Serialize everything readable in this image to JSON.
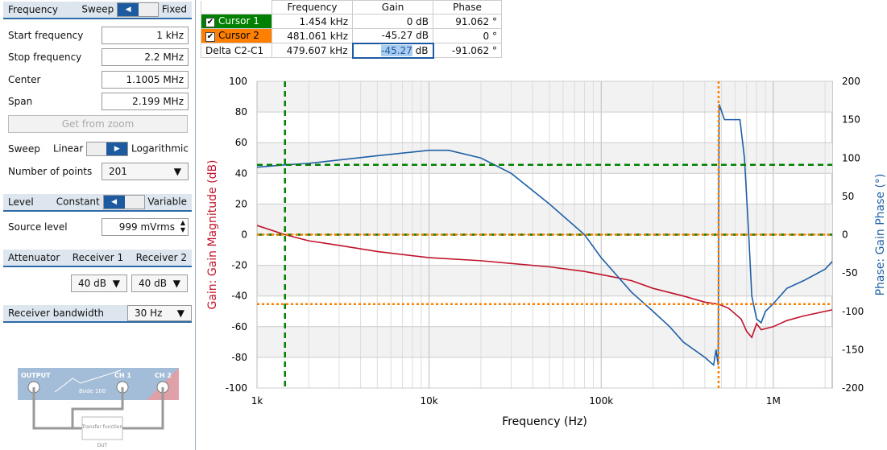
{
  "frequency": {
    "title": "Frequency",
    "sweep_label": "Sweep",
    "fixed_label": "Fixed",
    "start_label": "Start frequency",
    "start": "1 kHz",
    "stop_label": "Stop frequency",
    "stop": "2.2 MHz",
    "center_label": "Center",
    "center": "1.1005 MHz",
    "span_label": "Span",
    "span": "2.199 MHz",
    "get_from_zoom": "Get from zoom",
    "sweep_type_label": "Sweep",
    "linear": "Linear",
    "log": "Logarithmic",
    "points_label": "Number of points",
    "points": "201"
  },
  "level": {
    "title": "Level",
    "constant": "Constant",
    "variable": "Variable",
    "source_label": "Source level",
    "source": "999 mVrms"
  },
  "attenuator": {
    "title": "Attenuator",
    "r1": "Receiver 1",
    "r2": "Receiver 2",
    "r1_val": "40 dB",
    "r2_val": "40 dB"
  },
  "bandwidth": {
    "title": "Receiver bandwidth",
    "value": "30 Hz"
  },
  "diagram": {
    "output": "OUTPUT",
    "ch1": "CH 1",
    "ch2": "CH 2",
    "device": "Bode 100",
    "transfer": "Transfer function",
    "dut": "DUT"
  },
  "cursors": {
    "headers": [
      "Frequency",
      "Gain",
      "Phase"
    ],
    "rows": [
      {
        "name": "Cursor 1",
        "freq": "1.454 kHz",
        "gain": "0 dB",
        "phase": "91.062 °",
        "color": "#008000"
      },
      {
        "name": "Cursor 2",
        "freq": "481.061 kHz",
        "gain": "-45.27 dB",
        "phase": "0 °",
        "color": "#ff8000"
      },
      {
        "name": "Delta C2-C1",
        "freq": "479.607 kHz",
        "gain": "-45.27",
        "gain_unit": "dB",
        "phase": "-91.062 °"
      }
    ]
  },
  "chart_data": {
    "type": "line",
    "xlabel": "Frequency (Hz)",
    "ylabel": "Gain: Gain Magnitude (dB)",
    "y2label": "Phase: Gain Phase (°)",
    "xscale": "log",
    "xlim": [
      1000,
      2200000
    ],
    "ylim": [
      -100,
      100
    ],
    "y2lim": [
      -200,
      200
    ],
    "xticks": [
      {
        "v": 1000,
        "l": "1k"
      },
      {
        "v": 10000,
        "l": "10k"
      },
      {
        "v": 100000,
        "l": "100k"
      },
      {
        "v": 1000000,
        "l": "1M"
      }
    ],
    "yticks": [
      100,
      80,
      60,
      40,
      20,
      0,
      -20,
      -40,
      -60,
      -80,
      -100
    ],
    "y2ticks": [
      200,
      150,
      100,
      50,
      0,
      -50,
      -100,
      -150,
      -200
    ],
    "series": [
      {
        "name": "Gain",
        "color": "#c0142c",
        "axis": "left",
        "points": [
          [
            1000,
            6
          ],
          [
            1454,
            0
          ],
          [
            2000,
            -4
          ],
          [
            3000,
            -7
          ],
          [
            5000,
            -11
          ],
          [
            10000,
            -15
          ],
          [
            20000,
            -17
          ],
          [
            50000,
            -21
          ],
          [
            80000,
            -24
          ],
          [
            100000,
            -26
          ],
          [
            150000,
            -30
          ],
          [
            200000,
            -35
          ],
          [
            300000,
            -40
          ],
          [
            400000,
            -44
          ],
          [
            481061,
            -45.3
          ],
          [
            550000,
            -48
          ],
          [
            650000,
            -55
          ],
          [
            700000,
            -63
          ],
          [
            750000,
            -67
          ],
          [
            800000,
            -58
          ],
          [
            850000,
            -62
          ],
          [
            1000000,
            -60
          ],
          [
            1200000,
            -56
          ],
          [
            1500000,
            -53
          ],
          [
            2200000,
            -49
          ]
        ]
      },
      {
        "name": "Phase",
        "color": "#1f5fa6",
        "axis": "right",
        "points": [
          [
            1000,
            88
          ],
          [
            1454,
            91
          ],
          [
            2000,
            93
          ],
          [
            5000,
            103
          ],
          [
            10000,
            110
          ],
          [
            13000,
            110
          ],
          [
            20000,
            100
          ],
          [
            30000,
            80
          ],
          [
            50000,
            40
          ],
          [
            80000,
            0
          ],
          [
            100000,
            -30
          ],
          [
            150000,
            -75
          ],
          [
            200000,
            -100
          ],
          [
            250000,
            -120
          ],
          [
            300000,
            -140
          ],
          [
            400000,
            -160
          ],
          [
            450000,
            -170
          ],
          [
            465000,
            -150
          ],
          [
            478000,
            -170
          ],
          [
            485000,
            170
          ],
          [
            520000,
            150
          ],
          [
            600000,
            150
          ],
          [
            640000,
            150
          ],
          [
            680000,
            100
          ],
          [
            720000,
            0
          ],
          [
            750000,
            -80
          ],
          [
            800000,
            -110
          ],
          [
            850000,
            -115
          ],
          [
            900000,
            -100
          ],
          [
            1000000,
            -90
          ],
          [
            1200000,
            -70
          ],
          [
            1500000,
            -60
          ],
          [
            2000000,
            -45
          ],
          [
            2200000,
            -35
          ]
        ]
      }
    ],
    "cursors": [
      {
        "name": "Cursor 1",
        "x": 1454,
        "y": 0,
        "phase": 91.062,
        "color": "#008000"
      },
      {
        "name": "Cursor 2",
        "x": 481061,
        "y": -45.27,
        "phase": 0,
        "color": "#ff8000"
      }
    ]
  }
}
